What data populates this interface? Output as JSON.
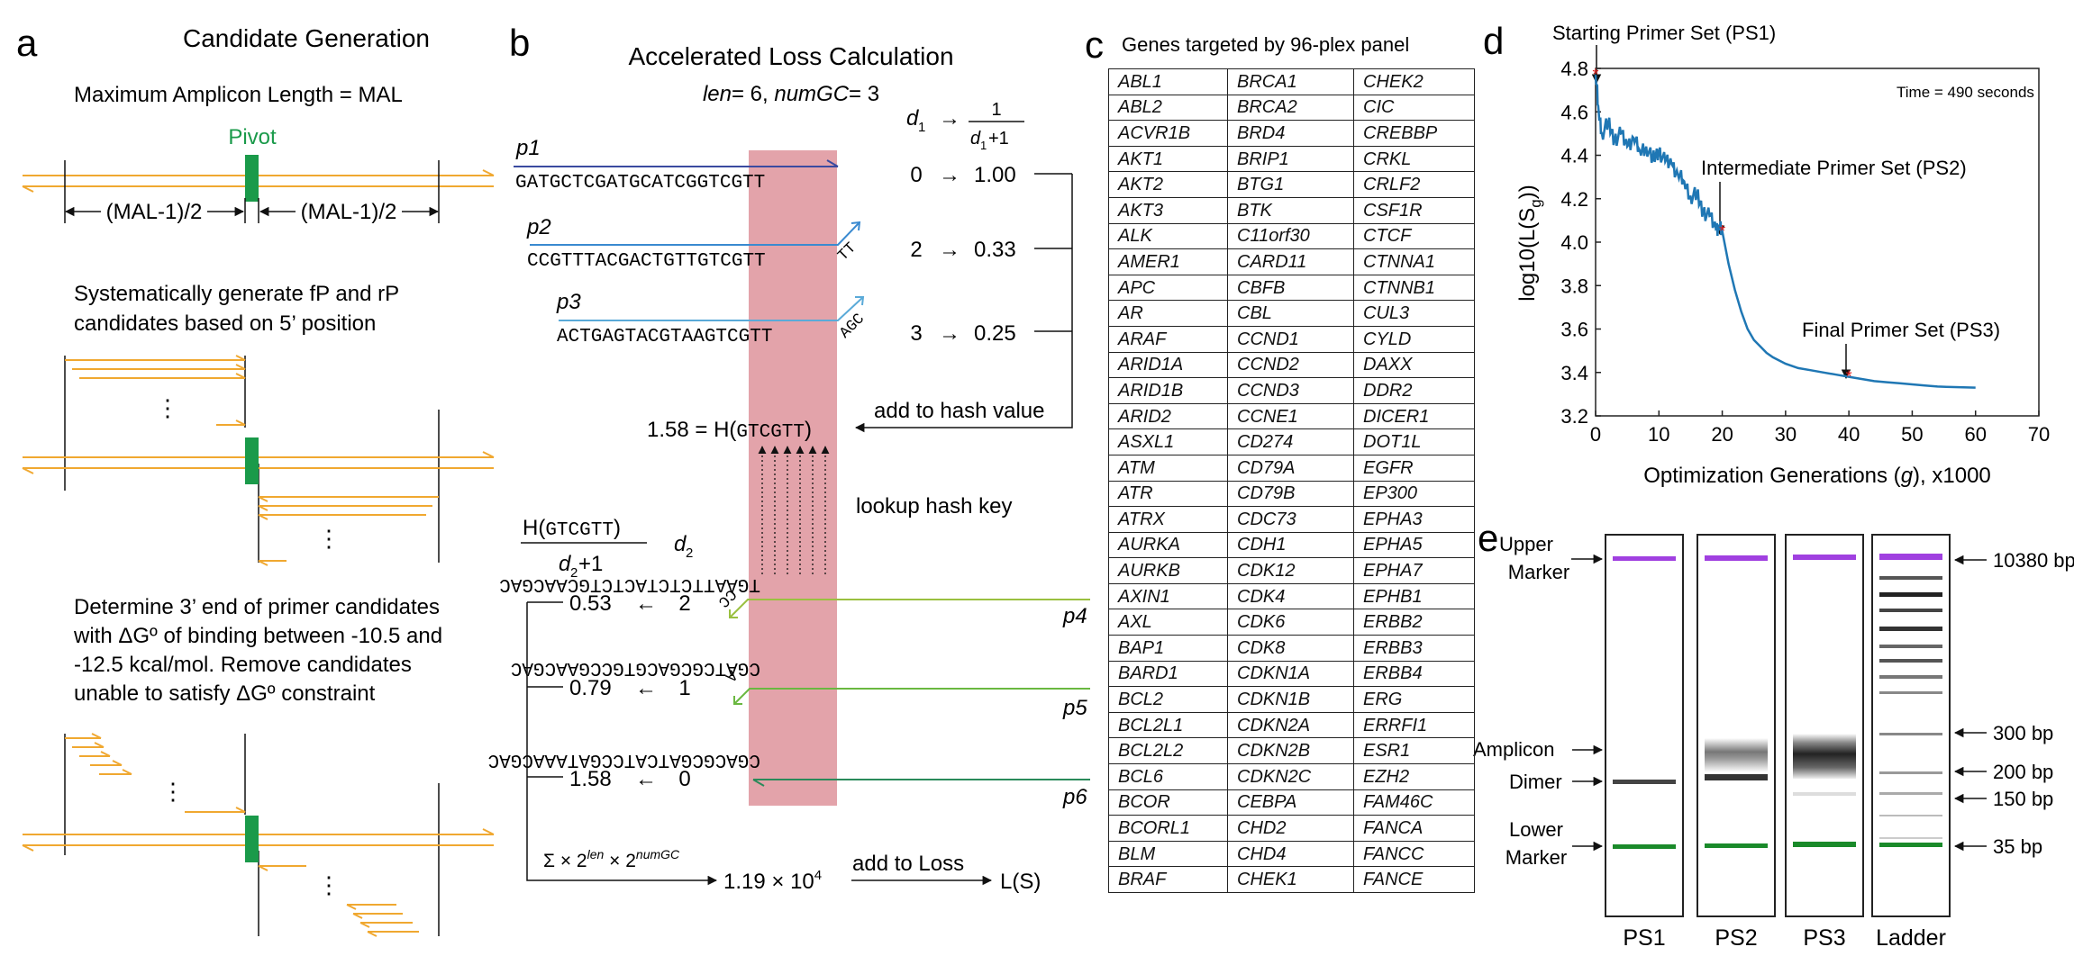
{
  "panel_a": {
    "letter": "a",
    "title": "Candidate Generation",
    "mal_label": "Maximum Amplicon Length = MAL",
    "pivot_label": "Pivot",
    "half_left": "(MAL-1)/2",
    "half_right": "(MAL-1)/2",
    "step2_line1": "Systematically generate fP and rP",
    "step2_line2": "candidates based on 5’ position",
    "step3_line1": "Determine 3’ end of primer candidates",
    "step3_line2": "with ΔGº of binding between -10.5 and",
    "step3_line3": "-12.5 kcal/mol. Remove candidates",
    "step3_line4": "unable to satisfy ΔGº constraint",
    "ellipsis": "⋮",
    "colors": {
      "strand": "#f0a830",
      "pivot": "#1a9a4a"
    }
  },
  "panel_b": {
    "letter": "b",
    "title": "Accelerated Loss Calculation",
    "params": {
      "len_label": "len",
      "len_value": "= 6, ",
      "numgc_label": "numGC",
      "numgc_value": "= 3"
    },
    "d1_header": {
      "d": "d",
      "sub": "1",
      "arrow": "→",
      "num": "1",
      "den_d": "d",
      "den_sub": "1",
      "den_tail": "+1"
    },
    "primers": [
      {
        "name": "p1",
        "seq": "GATGCTCGATGCATCGGTCGTT",
        "tail": "",
        "d1": "0",
        "value": "1.00"
      },
      {
        "name": "p2",
        "seq": "CCGTTTACGACTGTTGTCGTT",
        "tail": "TT",
        "d1": "2",
        "value": "0.33"
      },
      {
        "name": "p3",
        "seq": "ACTGAGTACGTAAGTCGTT",
        "tail": "AGC",
        "d1": "3",
        "value": "0.25"
      }
    ],
    "arrow_glyph": "→",
    "add_hash": "add to hash value",
    "hash_eq": {
      "value": "1.58 = H(",
      "key": "GTCGTT",
      "close": ")"
    },
    "lookup": "lookup hash key",
    "lower_header": {
      "num_pre": "H(",
      "num_key": "GTCGTT",
      "num_post": ")",
      "den_d": "d",
      "den_sub": "2",
      "den_tail": "+1",
      "d2": "d",
      "d2_sub": "2"
    },
    "targets": [
      {
        "name": "p4",
        "seq": "TGAATTCTCTACTCTGCAACGAC",
        "tail": "CC",
        "d2": "2",
        "value": "0.53"
      },
      {
        "name": "p5",
        "seq": "CGATCGCGACGTGCCGAACGAC",
        "tail": "A",
        "d2": "1",
        "value": "0.79"
      },
      {
        "name": "p6",
        "seq": "CGACGCGATCATCCGATAAACGAC",
        "tail": "",
        "d2": "0",
        "value": "1.58"
      }
    ],
    "left_arrow": "←",
    "sum": {
      "sigma": "Σ × 2",
      "len_sup": "len",
      "mid": " × 2",
      "gc_sup": "numGC"
    },
    "loss_value": {
      "base": "1.19 × 10",
      "exp": "4"
    },
    "add_loss": "add to Loss",
    "loss_label": "L(S)",
    "colors": {
      "highlight": "#d9848e",
      "p1": "#3a4aa0",
      "p2": "#3a8ad0",
      "p3": "#5aaad8",
      "p4": "#9ac040",
      "p5": "#6ab840",
      "p6": "#2a8a5a"
    }
  },
  "panel_c": {
    "letter": "c",
    "title": "Genes targeted by 96-plex panel",
    "rows": [
      [
        "ABL1",
        "BRCA1",
        "CHEK2"
      ],
      [
        "ABL2",
        "BRCA2",
        "CIC"
      ],
      [
        "ACVR1B",
        "BRD4",
        "CREBBP"
      ],
      [
        "AKT1",
        "BRIP1",
        "CRKL"
      ],
      [
        "AKT2",
        "BTG1",
        "CRLF2"
      ],
      [
        "AKT3",
        "BTK",
        "CSF1R"
      ],
      [
        "ALK",
        "C11orf30",
        "CTCF"
      ],
      [
        "AMER1",
        "CARD11",
        "CTNNA1"
      ],
      [
        "APC",
        "CBFB",
        "CTNNB1"
      ],
      [
        "AR",
        "CBL",
        "CUL3"
      ],
      [
        "ARAF",
        "CCND1",
        "CYLD"
      ],
      [
        "ARID1A",
        "CCND2",
        "DAXX"
      ],
      [
        "ARID1B",
        "CCND3",
        "DDR2"
      ],
      [
        "ARID2",
        "CCNE1",
        "DICER1"
      ],
      [
        "ASXL1",
        "CD274",
        "DOT1L"
      ],
      [
        "ATM",
        "CD79A",
        "EGFR"
      ],
      [
        "ATR",
        "CD79B",
        "EP300"
      ],
      [
        "ATRX",
        "CDC73",
        "EPHA3"
      ],
      [
        "AURKA",
        "CDH1",
        "EPHA5"
      ],
      [
        "AURKB",
        "CDK12",
        "EPHA7"
      ],
      [
        "AXIN1",
        "CDK4",
        "EPHB1"
      ],
      [
        "AXL",
        "CDK6",
        "ERBB2"
      ],
      [
        "BAP1",
        "CDK8",
        "ERBB3"
      ],
      [
        "BARD1",
        "CDKN1A",
        "ERBB4"
      ],
      [
        "BCL2",
        "CDKN1B",
        "ERG"
      ],
      [
        "BCL2L1",
        "CDKN2A",
        "ERRFI1"
      ],
      [
        "BCL2L2",
        "CDKN2B",
        "ESR1"
      ],
      [
        "BCL6",
        "CDKN2C",
        "EZH2"
      ],
      [
        "BCOR",
        "CEBPA",
        "FAM46C"
      ],
      [
        "BCORL1",
        "CHD2",
        "FANCA"
      ],
      [
        "BLM",
        "CHD4",
        "FANCC"
      ],
      [
        "BRAF",
        "CHEK1",
        "FANCE"
      ]
    ]
  },
  "panel_d": {
    "letter": "d",
    "start_label": "Starting Primer Set (PS1)",
    "time_label": "Time = 490 seconds",
    "mid_label": "Intermediate Primer Set (PS2)",
    "final_label": "Final Primer Set (PS3)",
    "ylabel": {
      "base": "log10(L(S",
      "sub": "g",
      "tail": "))"
    },
    "xlabel": {
      "pre": "Optimization Generations (",
      "var": "g",
      "post": "), x1000"
    }
  },
  "chart_data": {
    "type": "line",
    "xlabel": "Optimization Generations (g), x1000",
    "ylabel": "log10(L(Sg))",
    "xlim": [
      0,
      70
    ],
    "ylim": [
      3.2,
      4.8
    ],
    "xticks": [
      0,
      10,
      20,
      30,
      40,
      50,
      60,
      70
    ],
    "yticks": [
      3.2,
      3.4,
      3.6,
      3.8,
      4.0,
      4.2,
      4.4,
      4.6,
      4.8
    ],
    "grid": false,
    "x": [
      0,
      0.5,
      1,
      2,
      3,
      4,
      5,
      6,
      7,
      8,
      9,
      10,
      11,
      12,
      13,
      14,
      15,
      16,
      17,
      18,
      19,
      19.5,
      20,
      21,
      22,
      23,
      24,
      25,
      26,
      27,
      28,
      30,
      32,
      34,
      36,
      38,
      40,
      42,
      44,
      46,
      48,
      50,
      52,
      54,
      56,
      58,
      60
    ],
    "series": [
      {
        "values": [
          4.77,
          4.6,
          4.5,
          4.55,
          4.47,
          4.5,
          4.44,
          4.48,
          4.42,
          4.44,
          4.38,
          4.42,
          4.37,
          4.36,
          4.31,
          4.28,
          4.21,
          4.22,
          4.14,
          4.12,
          4.06,
          4.07,
          4.05,
          3.9,
          3.78,
          3.68,
          3.6,
          3.55,
          3.52,
          3.49,
          3.47,
          3.44,
          3.42,
          3.41,
          3.4,
          3.39,
          3.38,
          3.37,
          3.36,
          3.355,
          3.35,
          3.345,
          3.34,
          3.335,
          3.333,
          3.332,
          3.33
        ],
        "color": "#1f77b4"
      }
    ],
    "markers": [
      {
        "x": 0,
        "y": 4.77,
        "label": "Starting Primer Set (PS1)"
      },
      {
        "x": 20,
        "y": 4.05,
        "label": "Intermediate Primer Set (PS2)"
      },
      {
        "x": 40,
        "y": 3.38,
        "label": "Final Primer Set (PS3)"
      }
    ]
  },
  "panel_e": {
    "letter": "e",
    "left_labels": {
      "upper1": "Upper",
      "upper2": "Marker",
      "amplicon": "Amplicon",
      "dimer": "Dimer",
      "lower1": "Lower",
      "lower2": "Marker"
    },
    "right_labels": [
      "10380 bp",
      "300 bp",
      "200 bp",
      "150 bp",
      "35 bp"
    ],
    "lanes": [
      "PS1",
      "PS2",
      "PS3",
      "Ladder"
    ],
    "colors": {
      "upper_marker": "#a040e0",
      "lower_marker": "#1a8a2a"
    }
  }
}
